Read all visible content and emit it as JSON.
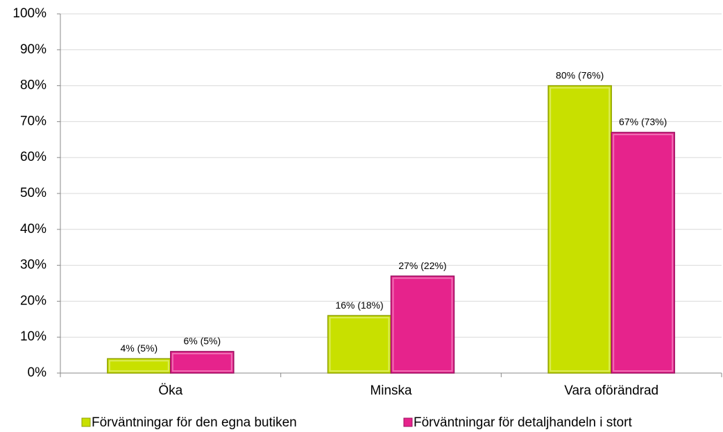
{
  "chart_data": {
    "type": "bar",
    "categories": [
      "Öka",
      "Minska",
      "Vara oförändrad"
    ],
    "series": [
      {
        "name": "Förväntningar för den egna butiken",
        "color": "#c8e000",
        "values": [
          4,
          16,
          80
        ],
        "value_labels": [
          "4% (5%)",
          "16% (18%)",
          "80% (76%)"
        ]
      },
      {
        "name": "Förväntningar för detaljhandeln i stort",
        "color": "#e6238c",
        "values": [
          6,
          27,
          67
        ],
        "value_labels": [
          "6% (5%)",
          "27% (22%)",
          "67% (73%)"
        ]
      }
    ],
    "ylim": [
      0,
      100
    ],
    "yticks": [
      {
        "value": 0,
        "label": "0%"
      },
      {
        "value": 10,
        "label": "10%"
      },
      {
        "value": 20,
        "label": "20%"
      },
      {
        "value": 30,
        "label": "30%"
      },
      {
        "value": 40,
        "label": "40%"
      },
      {
        "value": 50,
        "label": "50%"
      },
      {
        "value": 60,
        "label": "60%"
      },
      {
        "value": 70,
        "label": "70%"
      },
      {
        "value": 80,
        "label": "80%"
      },
      {
        "value": 90,
        "label": "90%"
      },
      {
        "value": 100,
        "label": "100%"
      }
    ],
    "grid": true,
    "legend": "bottom"
  }
}
